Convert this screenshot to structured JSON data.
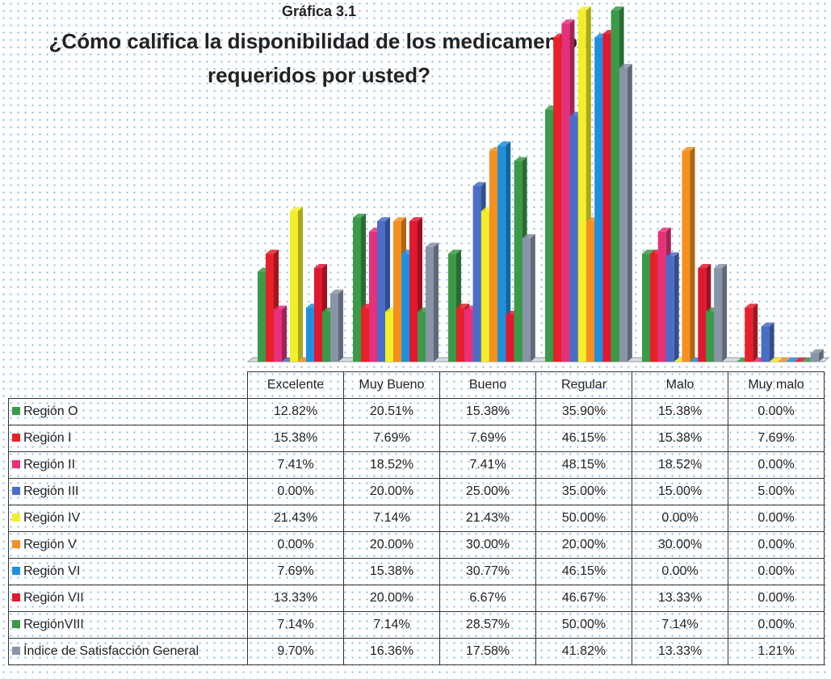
{
  "chart_data": {
    "type": "bar",
    "label": "Gráfica 3.1",
    "title": [
      "¿Cómo califica la disponibilidad de los  medicamentos",
      "requeridos por usted?"
    ],
    "categories": [
      "Excelente",
      "Muy Bueno",
      "Bueno",
      "Regular",
      "Malo",
      "Muy malo"
    ],
    "series": [
      {
        "name": "Región O",
        "color": "#3a9a48",
        "values": [
          12.82,
          20.51,
          15.38,
          35.9,
          15.38,
          0.0
        ],
        "value_labels": [
          "12.82%",
          "20.51%",
          "15.38%",
          "35.90%",
          "15.38%",
          "0.00%"
        ]
      },
      {
        "name": "Región I",
        "color": "#e8202a",
        "values": [
          15.38,
          7.69,
          7.69,
          46.15,
          15.38,
          7.69
        ],
        "value_labels": [
          "15.38%",
          "7.69%",
          "7.69%",
          "46.15%",
          "15.38%",
          "7.69%"
        ]
      },
      {
        "name": "Región II",
        "color": "#e6307a",
        "values": [
          7.41,
          18.52,
          7.41,
          48.15,
          18.52,
          0.0
        ],
        "value_labels": [
          "7.41%",
          "18.52%",
          "7.41%",
          "48.15%",
          "18.52%",
          "0.00%"
        ]
      },
      {
        "name": "Región III",
        "color": "#4a6ec8",
        "values": [
          0.0,
          20.0,
          25.0,
          35.0,
          15.0,
          5.0
        ],
        "value_labels": [
          "0.00%",
          "20.00%",
          "25.00%",
          "35.00%",
          "15.00%",
          "5.00%"
        ]
      },
      {
        "name": "Región IV",
        "color": "#f2ee2a",
        "values": [
          21.43,
          7.14,
          21.43,
          50.0,
          0.0,
          0.0
        ],
        "value_labels": [
          "21.43%",
          "7.14%",
          "21.43%",
          "50.00%",
          "0.00%",
          "0.00%"
        ]
      },
      {
        "name": "Región V",
        "color": "#f5901e",
        "values": [
          0.0,
          20.0,
          30.0,
          20.0,
          30.0,
          0.0
        ],
        "value_labels": [
          "0.00%",
          "20.00%",
          "30.00%",
          "20.00%",
          "30.00%",
          "0.00%"
        ]
      },
      {
        "name": "Región VI",
        "color": "#1e90e0",
        "values": [
          7.69,
          15.38,
          30.77,
          46.15,
          0.0,
          0.0
        ],
        "value_labels": [
          "7.69%",
          "15.38%",
          "30.77%",
          "46.15%",
          "0.00%",
          "0.00%"
        ]
      },
      {
        "name": "Región VII",
        "color": "#e01830",
        "values": [
          13.33,
          20.0,
          6.67,
          46.67,
          13.33,
          0.0
        ],
        "value_labels": [
          "13.33%",
          "20.00%",
          "6.67%",
          "46.67%",
          "13.33%",
          "0.00%"
        ]
      },
      {
        "name": "RegiónVIII",
        "color": "#3a9a48",
        "values": [
          7.14,
          7.14,
          28.57,
          50.0,
          7.14,
          0.0
        ],
        "value_labels": [
          "7.14%",
          "7.14%",
          "28.57%",
          "50.00%",
          "7.14%",
          "0.00%"
        ]
      },
      {
        "name": "Índice de Satisfacción General",
        "color": "#8a94a8",
        "values": [
          9.7,
          16.36,
          17.58,
          41.82,
          13.33,
          1.21
        ],
        "value_labels": [
          "9.70%",
          "16.36%",
          "17.58%",
          "41.82%",
          "13.33%",
          "1.21%"
        ]
      }
    ]
  }
}
